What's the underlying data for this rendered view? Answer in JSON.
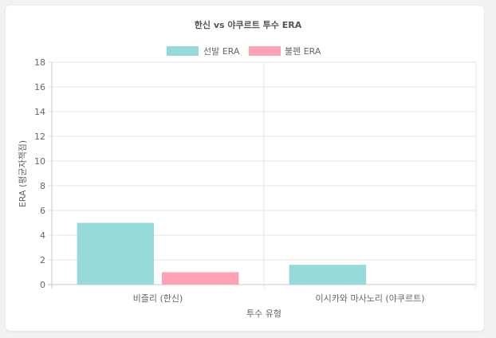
{
  "chart_data": {
    "type": "bar",
    "title": "한신 vs 야쿠르트 투수 ERA",
    "xlabel": "투수 유형",
    "ylabel": "ERA (평균자책점)",
    "categories": [
      "비즐리 (한신)",
      "이시카와 마사노리 (야쿠르트)"
    ],
    "series": [
      {
        "name": "선발 ERA",
        "values": [
          5.0,
          1.6
        ],
        "color": "#96d9d9"
      },
      {
        "name": "불펜 ERA",
        "values": [
          1.0,
          0
        ],
        "color": "#ffa1b5"
      }
    ],
    "ylim": [
      0,
      18
    ],
    "yticks": [
      "0",
      "2",
      "4",
      "6",
      "8",
      "10",
      "12",
      "14",
      "16",
      "18"
    ],
    "grid": true,
    "legend": "top"
  }
}
